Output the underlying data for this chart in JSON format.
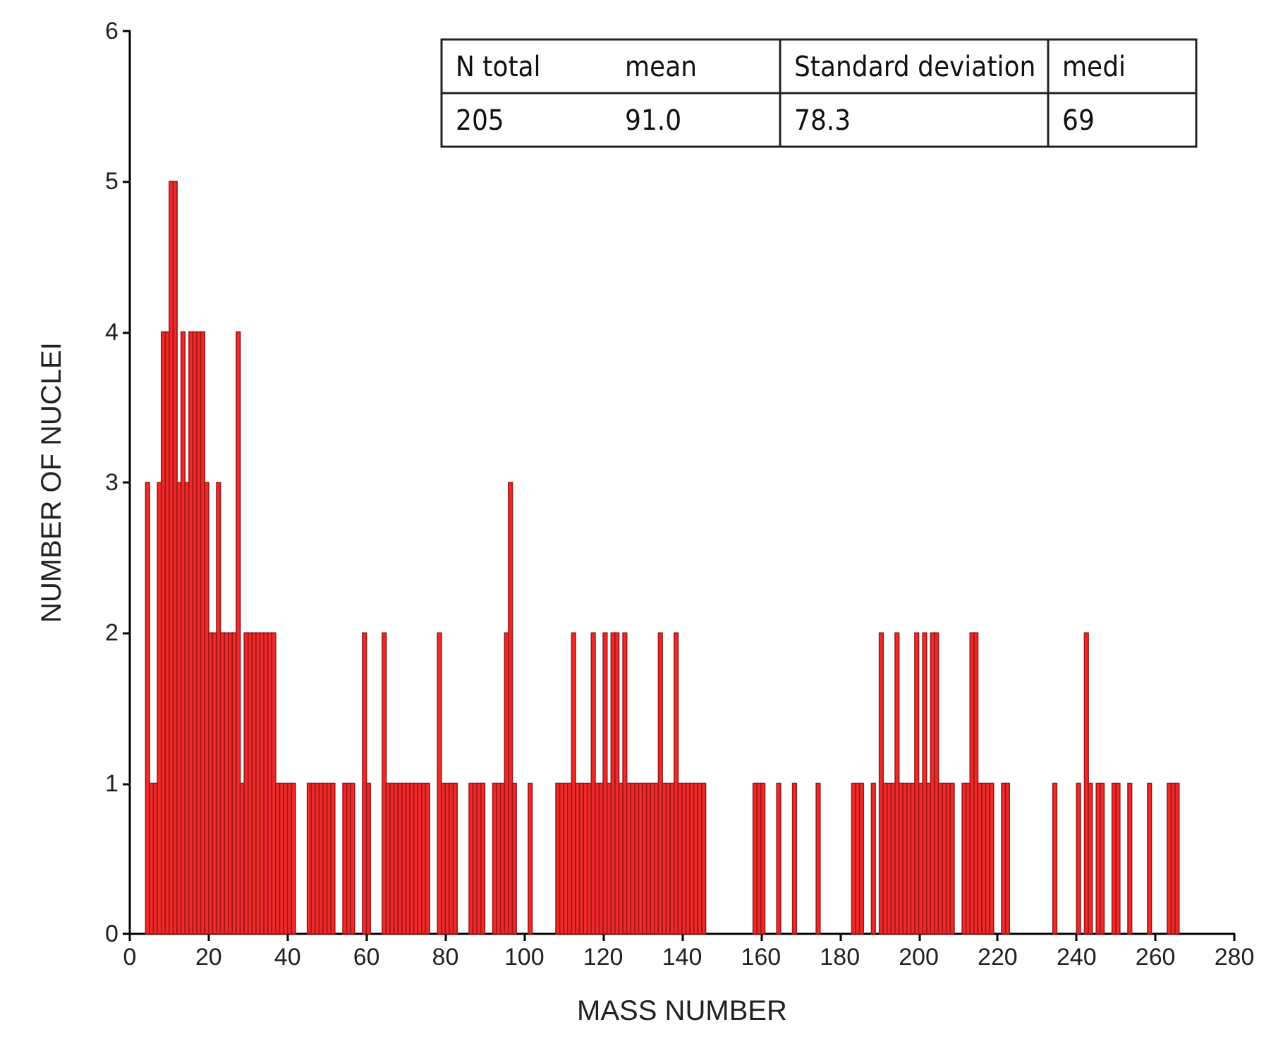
{
  "chart_data": {
    "type": "histogram",
    "xlabel": "MASS NUMBER",
    "ylabel": "NUMBER OF NUCLEI",
    "bins": [
      4,
      5,
      6,
      7,
      8,
      9,
      10,
      11,
      12,
      13,
      14,
      15,
      16,
      17,
      18,
      19,
      20,
      21,
      22,
      23,
      24,
      25,
      26,
      27,
      28,
      29,
      30,
      31,
      32,
      33,
      34,
      35,
      36,
      37,
      38,
      39,
      40,
      41,
      42,
      43,
      44,
      45,
      46,
      47,
      48,
      49,
      50,
      51,
      52,
      53,
      54,
      55,
      56,
      57,
      58,
      59,
      60,
      61,
      62,
      63,
      64,
      65,
      66,
      67,
      68,
      69,
      70,
      71,
      72,
      73,
      74,
      75,
      76,
      77,
      78,
      79,
      80,
      81,
      82,
      83,
      84,
      85,
      86,
      87,
      88,
      89,
      90,
      91,
      92,
      93,
      94,
      95,
      96,
      97,
      98,
      99,
      100,
      101,
      102,
      103,
      104,
      105,
      106,
      107,
      108,
      109,
      110,
      111,
      112,
      113,
      114,
      115,
      116,
      117,
      118,
      119,
      120,
      121,
      122,
      123,
      124,
      125,
      126,
      127,
      128,
      129,
      130,
      131,
      132,
      133,
      134,
      135,
      136,
      137,
      138,
      139,
      140,
      141,
      142,
      143,
      144,
      145,
      146,
      147,
      148,
      149,
      150,
      151,
      152,
      153,
      154,
      155,
      156,
      157,
      158,
      159,
      160,
      161,
      162,
      163,
      164,
      165,
      166,
      167,
      168,
      169,
      170,
      171,
      172,
      173,
      174,
      175,
      176,
      177,
      178,
      179,
      180,
      181,
      182,
      183,
      184,
      185,
      186,
      187,
      188,
      189,
      190,
      191,
      192,
      193,
      194,
      195,
      196,
      197,
      198,
      199,
      200,
      201,
      202,
      203,
      204,
      205,
      206,
      207,
      208,
      209,
      210,
      211,
      212,
      213,
      214,
      215,
      216,
      217,
      218,
      219,
      220,
      221,
      222,
      223,
      224,
      225,
      226,
      227,
      228,
      229,
      230,
      231,
      232,
      233,
      234,
      235,
      236,
      237,
      238,
      239,
      240,
      241,
      242,
      243,
      244,
      245,
      246,
      247,
      248,
      249,
      250,
      251,
      252,
      253,
      254,
      255,
      256,
      257,
      258,
      259,
      260,
      261,
      262,
      263,
      264,
      265,
      266
    ],
    "values": [
      3,
      1,
      1,
      3,
      4,
      4,
      5,
      5,
      3,
      4,
      3,
      4,
      4,
      4,
      4,
      3,
      2,
      2,
      3,
      2,
      2,
      2,
      2,
      4,
      1,
      2,
      2,
      2,
      2,
      2,
      2,
      2,
      2,
      1,
      1,
      1,
      1,
      1,
      0,
      0,
      0,
      1,
      1,
      1,
      1,
      1,
      1,
      1,
      0,
      0,
      1,
      1,
      1,
      0,
      0,
      2,
      1,
      0,
      0,
      0,
      2,
      1,
      1,
      1,
      1,
      1,
      1,
      1,
      1,
      1,
      1,
      1,
      0,
      0,
      2,
      1,
      1,
      1,
      1,
      0,
      0,
      0,
      1,
      1,
      1,
      1,
      0,
      0,
      1,
      1,
      1,
      2,
      3,
      1,
      0,
      0,
      0,
      1,
      0,
      0,
      0,
      0,
      0,
      0,
      1,
      1,
      1,
      1,
      2,
      1,
      1,
      1,
      1,
      2,
      1,
      1,
      2,
      1,
      2,
      2,
      1,
      2,
      1,
      1,
      1,
      1,
      1,
      1,
      1,
      1,
      2,
      1,
      1,
      1,
      2,
      1,
      1,
      1,
      1,
      1,
      1,
      1,
      0,
      0,
      0,
      0,
      0,
      0,
      0,
      0,
      0,
      0,
      0,
      0,
      1,
      1,
      1,
      0,
      0,
      0,
      1,
      0,
      0,
      0,
      1,
      0,
      0,
      0,
      0,
      0,
      1,
      0,
      0,
      0,
      0,
      0,
      0,
      0,
      0,
      1,
      1,
      1,
      0,
      0,
      1,
      0,
      2,
      1,
      1,
      1,
      2,
      1,
      1,
      1,
      1,
      2,
      1,
      2,
      1,
      2,
      2,
      1,
      1,
      1,
      1,
      0,
      0,
      1,
      1,
      2,
      2,
      1,
      1,
      1,
      1,
      0,
      0,
      1,
      1,
      0,
      0,
      0,
      0,
      0,
      0,
      0,
      0,
      0,
      0,
      0,
      1,
      0,
      0,
      0,
      0,
      0,
      1,
      0,
      2,
      1,
      0,
      1,
      1,
      0,
      0,
      1,
      1,
      0,
      0,
      1,
      0,
      0,
      0,
      0,
      1,
      0,
      0,
      0,
      0,
      1,
      1,
      1
    ],
    "color": "#ee2a2a",
    "xlim": [
      0,
      280
    ],
    "xticks": [
      0,
      20,
      40,
      60,
      80,
      100,
      120,
      140,
      160,
      180,
      200,
      220,
      240,
      260,
      280
    ],
    "ylim": [
      0,
      6
    ],
    "yticks": [
      0,
      1,
      2,
      3,
      4,
      5,
      6
    ],
    "grid": false,
    "annotations": [
      "N total",
      "mean",
      "Standard deviation",
      "medi",
      "205",
      "91.0",
      "78.3",
      "69"
    ]
  }
}
